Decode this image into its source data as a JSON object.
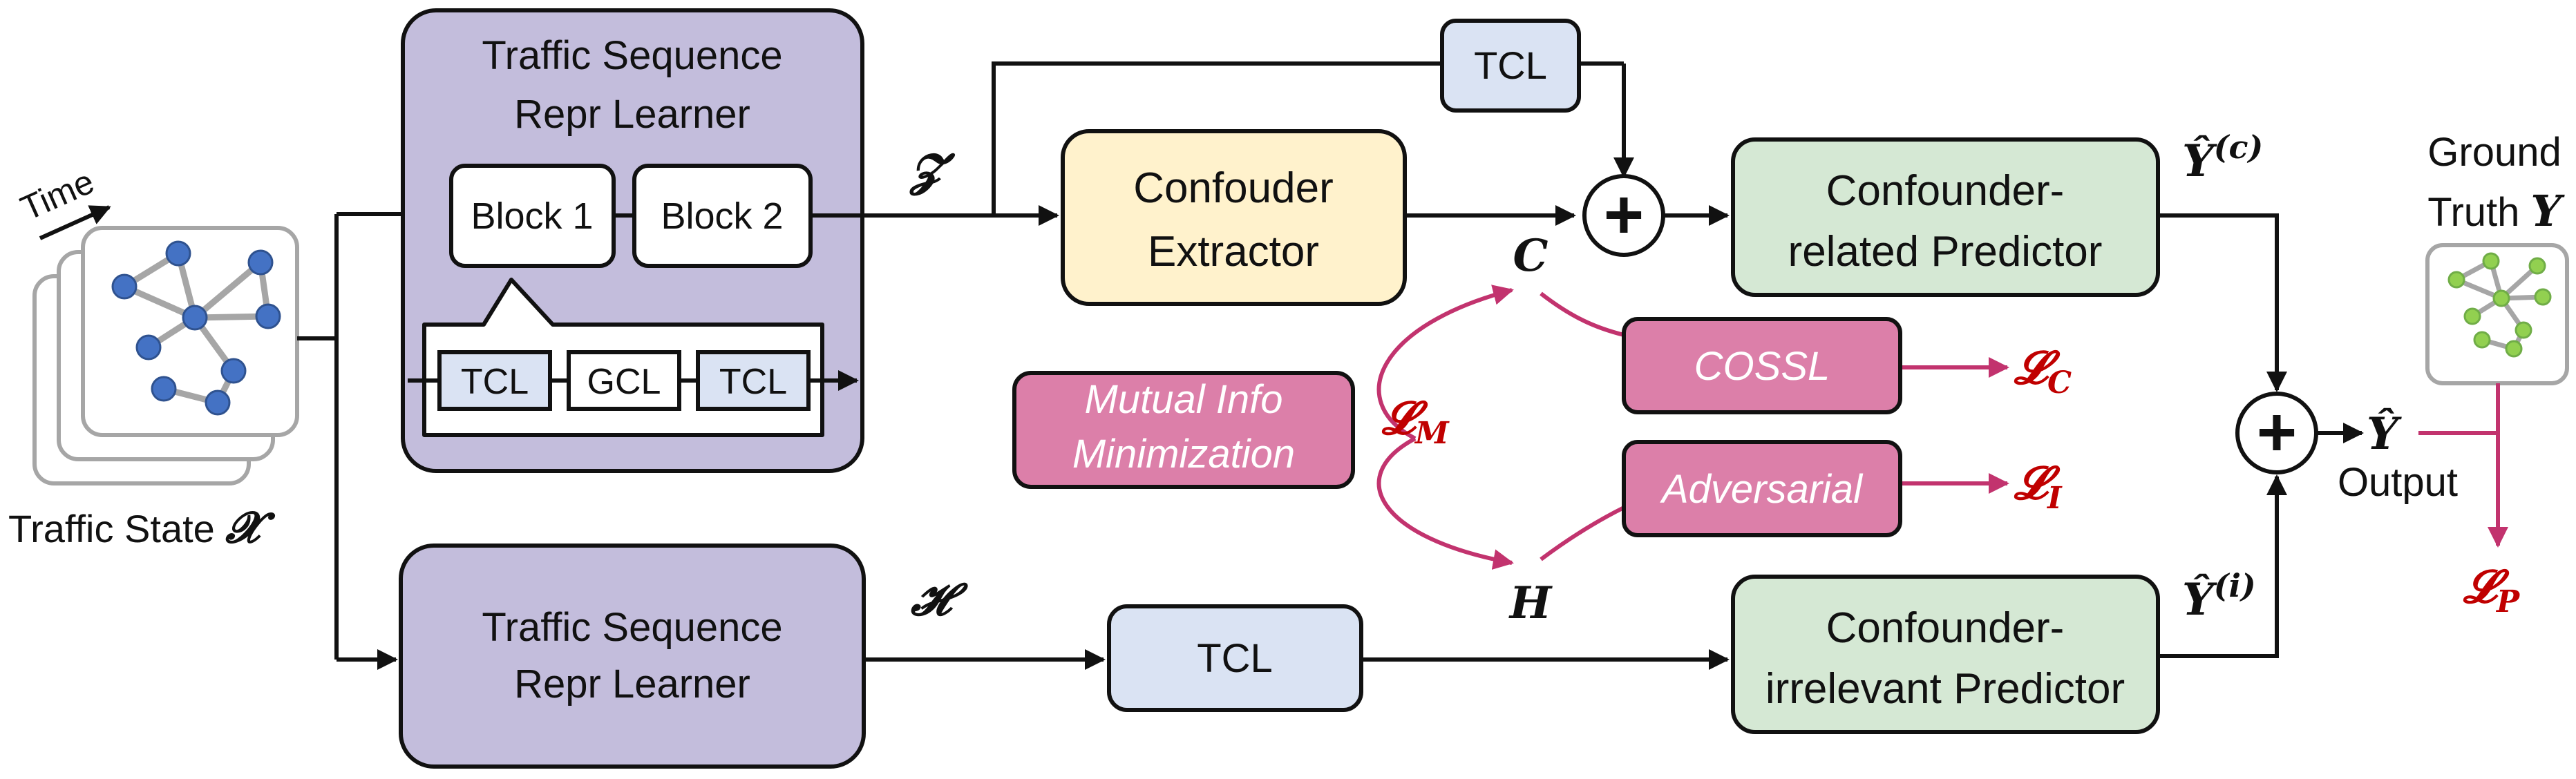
{
  "input": {
    "time_label": "Time",
    "caption": "Traffic State",
    "symbol": "𝓧"
  },
  "upper_learner": {
    "title_line1": "Traffic Sequence",
    "title_line2": "Repr Learner",
    "block1": "Block 1",
    "block2": "Block 2",
    "inner": [
      "TCL",
      "GCL",
      "TCL"
    ]
  },
  "lower_learner": {
    "title_line1": "Traffic Sequence",
    "title_line2": "Repr Learner"
  },
  "z_symbol": "𝓩",
  "h_symbol": "𝓗",
  "top_tcl": "TCL",
  "bottom_tcl": "TCL",
  "extractor": {
    "line1": "Confouder",
    "line2": "Extractor"
  },
  "c_symbol": "C",
  "hh_symbol": "H",
  "mutual_info": {
    "line1": "Mutual Info",
    "line2": "Minimization"
  },
  "cossl": "COSSL",
  "adversarial": "Adversarial",
  "losses": {
    "m": "𝓛",
    "m_sub": "M",
    "c": "𝓛",
    "c_sub": "C",
    "i": "𝓛",
    "i_sub": "I",
    "p": "𝓛",
    "p_sub": "P"
  },
  "related_predictor": {
    "line1": "Confounder-",
    "line2": "related Predictor"
  },
  "irrelevant_predictor": {
    "line1": "Confounder-",
    "line2": "irrelevant Predictor"
  },
  "y_c": {
    "base": "Ŷ",
    "sup": "(c)"
  },
  "y_i": {
    "base": "Ŷ",
    "sup": "(i)"
  },
  "y_hat": "Ŷ",
  "output_label": "Output",
  "ground_truth": {
    "line1": "Ground",
    "line2": "Truth",
    "symbol": "Y"
  },
  "plus_glyph": "+",
  "colors": {
    "purple_fill": "#c3bddc",
    "yellow_fill": "#fff2cc",
    "green_fill": "#d5e8d4",
    "tcl_fill": "#dae3f3",
    "pink_fill": "#dc7fa9",
    "loss_red": "#c00000",
    "pink_arrow": "#c2336e",
    "node_blue": "#4472c4",
    "node_green": "#92d050"
  }
}
